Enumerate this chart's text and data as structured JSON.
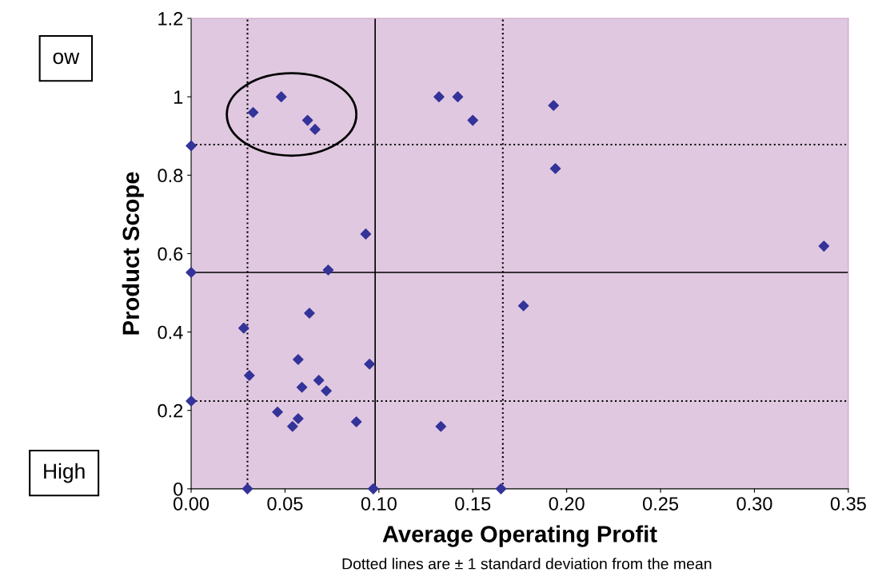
{
  "chart_data": {
    "type": "scatter",
    "xlabel": "Average Operating Profit",
    "ylabel": "Product Scope",
    "x": [
      0.0,
      0.033,
      0.048,
      0.062,
      0.066,
      0.132,
      0.142,
      0.15,
      0.193,
      0.194,
      0.093,
      0.073,
      0.0,
      0.337,
      0.177,
      0.063,
      0.028,
      0.057,
      0.095,
      0.031,
      0.068,
      0.059,
      0.072,
      0.0,
      0.046,
      0.057,
      0.054,
      0.088,
      0.133,
      0.03,
      0.097,
      0.165
    ],
    "values": [
      0.875,
      0.96,
      1.0,
      0.94,
      0.917,
      1.0,
      1.0,
      0.94,
      0.978,
      0.817,
      0.65,
      0.558,
      0.552,
      0.619,
      0.467,
      0.448,
      0.41,
      0.33,
      0.318,
      0.289,
      0.277,
      0.259,
      0.25,
      0.224,
      0.196,
      0.179,
      0.159,
      0.171,
      0.159,
      0.0,
      0.0,
      0.0
    ],
    "color": "#333399",
    "marker": "diamond",
    "xlim": [
      0,
      0.35
    ],
    "xticks": [
      {
        "value": 0,
        "label": "0.00"
      },
      {
        "value": 0.05,
        "label": "0.05"
      },
      {
        "value": 0.1,
        "label": "0.10"
      },
      {
        "value": 0.15,
        "label": "0.15"
      },
      {
        "value": 0.2,
        "label": "0.20"
      },
      {
        "value": 0.25,
        "label": "0.25"
      },
      {
        "value": 0.3,
        "label": "0.30"
      },
      {
        "value": 0.35,
        "label": "0.35"
      }
    ],
    "ylim": [
      0,
      1.2
    ],
    "yticks": [
      0,
      0.2,
      0.4,
      0.6,
      0.8,
      1,
      1.2
    ],
    "ref_lines": [
      {
        "axis": "x",
        "value": 0.098,
        "color": "#000000",
        "line_style": "solid"
      },
      {
        "axis": "x",
        "value": 0.03,
        "color": "#000000",
        "line_style": "dotted"
      },
      {
        "axis": "x",
        "value": 0.166,
        "color": "#000000",
        "line_style": "dotted"
      },
      {
        "axis": "y",
        "value": 0.552,
        "color": "#000000",
        "line_style": "solid"
      },
      {
        "axis": "y",
        "value": 0.878,
        "color": "#000000",
        "line_style": "dotted"
      },
      {
        "axis": "y",
        "value": 0.224,
        "color": "#000000",
        "line_style": "dotted"
      }
    ],
    "annotations": [
      "ow",
      "High",
      "Dotted lines are ± 1 standard deviation from the mean"
    ],
    "grid": false,
    "legend": false
  }
}
